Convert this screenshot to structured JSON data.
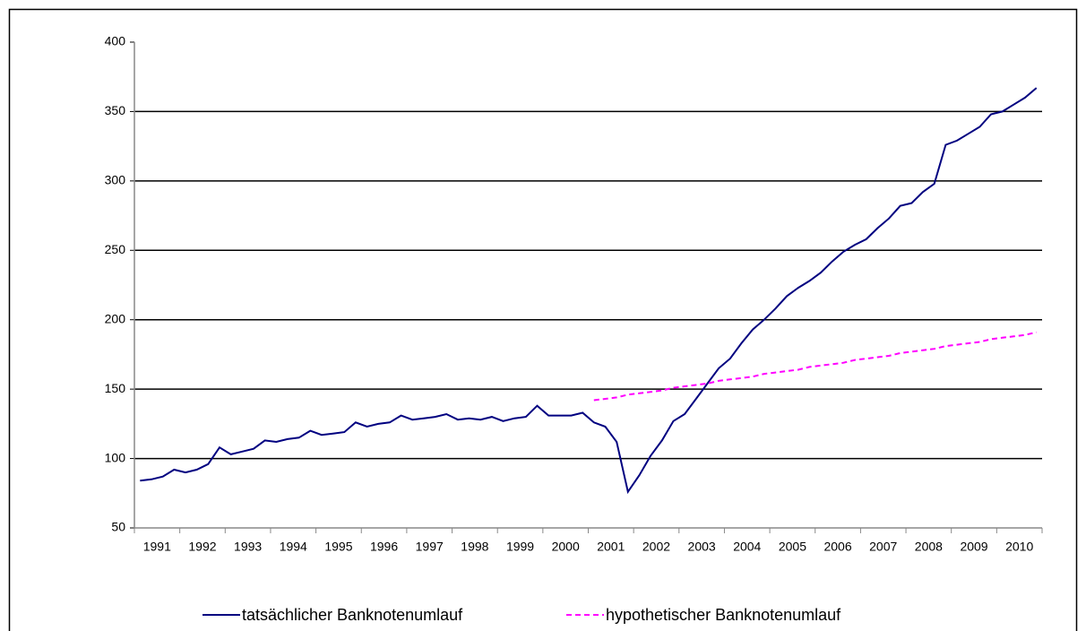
{
  "chart_data": {
    "type": "line",
    "categories": [
      null,
      "1991",
      null,
      null,
      null,
      "1992",
      null,
      null,
      null,
      "1993",
      null,
      null,
      null,
      "1994",
      null,
      null,
      null,
      "1995",
      null,
      null,
      null,
      "1996",
      null,
      null,
      null,
      "1997",
      null,
      null,
      null,
      "1998",
      null,
      null,
      null,
      "1999",
      null,
      null,
      null,
      "2000",
      null,
      null,
      null,
      "2001",
      null,
      null,
      null,
      "2002",
      null,
      null,
      null,
      "2003",
      null,
      null,
      null,
      "2004",
      null,
      null,
      null,
      "2005",
      null,
      null,
      null,
      "2006",
      null,
      null,
      null,
      "2007",
      null,
      null,
      null,
      "2008",
      null,
      null,
      null,
      "2009",
      null,
      null,
      null,
      "2010",
      null,
      null
    ],
    "series": [
      {
        "name": "tatsächlicher Banknotenumlauf",
        "color": "#000080",
        "dash": false,
        "values": [
          84,
          85,
          87,
          92,
          90,
          92,
          96,
          108,
          103,
          105,
          107,
          113,
          112,
          114,
          115,
          120,
          117,
          118,
          119,
          126,
          123,
          125,
          126,
          131,
          128,
          129,
          130,
          132,
          128,
          129,
          128,
          130,
          127,
          129,
          130,
          138,
          131,
          131,
          131,
          133,
          126,
          123,
          112,
          76,
          88,
          102,
          113,
          127,
          132,
          143,
          154,
          165,
          172,
          183,
          193,
          200,
          208,
          217,
          223,
          228,
          234,
          242,
          249,
          254,
          258,
          266,
          273,
          282,
          284,
          292,
          298,
          326,
          329,
          334,
          339,
          348,
          350,
          355,
          360,
          367
        ]
      },
      {
        "name": "hypothetischer Banknotenumlauf",
        "color": "#ff00ff",
        "dash": true,
        "values": [
          null,
          null,
          null,
          null,
          null,
          null,
          null,
          null,
          null,
          null,
          null,
          null,
          null,
          null,
          null,
          null,
          null,
          null,
          null,
          null,
          null,
          null,
          null,
          null,
          null,
          null,
          null,
          null,
          null,
          null,
          null,
          null,
          null,
          null,
          null,
          null,
          null,
          null,
          null,
          null,
          142,
          143,
          144,
          146,
          147,
          148,
          149,
          151,
          152,
          153,
          154,
          156,
          157,
          158,
          159,
          161,
          162,
          163,
          164,
          166,
          167,
          168,
          169,
          171,
          172,
          173,
          174,
          176,
          177,
          178,
          179,
          181,
          182,
          183,
          184,
          186,
          187,
          188,
          189,
          191
        ]
      }
    ],
    "ylim": [
      50,
      400
    ],
    "yticks": [
      50,
      100,
      150,
      200,
      250,
      300,
      350,
      400
    ],
    "grid": true
  }
}
